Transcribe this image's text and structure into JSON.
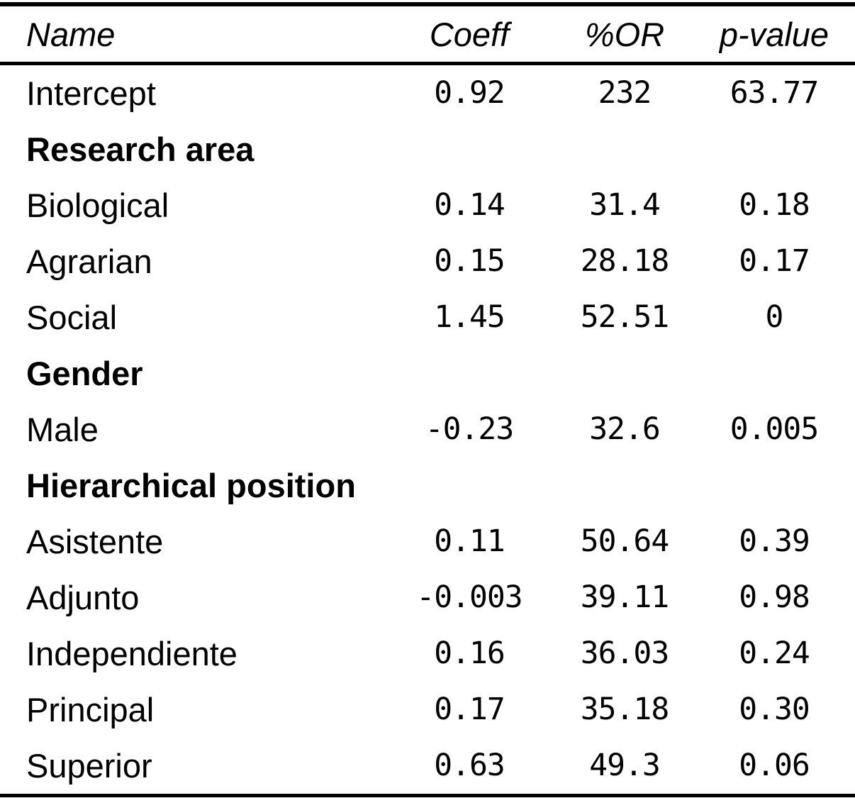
{
  "page": {
    "background": "#ffffff",
    "text_color": "#000000",
    "rule_color": "#000000"
  },
  "chart_data": {
    "type": "table",
    "columns": [
      "Name",
      "Coeff",
      "%OR",
      "p-value"
    ],
    "rows": [
      {
        "name": "Intercept",
        "coeff": "0.92",
        "or": "232",
        "p": "63.77"
      },
      {
        "name": "Research area",
        "section": true
      },
      {
        "name": "Biological",
        "coeff": "0.14",
        "or": "31.4",
        "p": "0.18"
      },
      {
        "name": "Agrarian",
        "coeff": "0.15",
        "or": "28.18",
        "p": "0.17"
      },
      {
        "name": "Social",
        "coeff": "1.45",
        "or": "52.51",
        "p": "0"
      },
      {
        "name": "Gender",
        "section": true
      },
      {
        "name": "Male",
        "coeff": "-0.23",
        "or": "32.6",
        "p": "0.005"
      },
      {
        "name": "Hierarchical position",
        "section": true
      },
      {
        "name": "Asistente",
        "coeff": "0.11",
        "or": "50.64",
        "p": "0.39"
      },
      {
        "name": "Adjunto",
        "coeff": "-0.003",
        "or": "39.11",
        "p": "0.98"
      },
      {
        "name": "Independiente",
        "coeff": "0.16",
        "or": "36.03",
        "p": "0.24"
      },
      {
        "name": "Principal",
        "coeff": "0.17",
        "or": "35.18",
        "p": "0.30"
      },
      {
        "name": "Superior",
        "coeff": "0.63",
        "or": "49.3",
        "p": "0.06"
      }
    ]
  }
}
